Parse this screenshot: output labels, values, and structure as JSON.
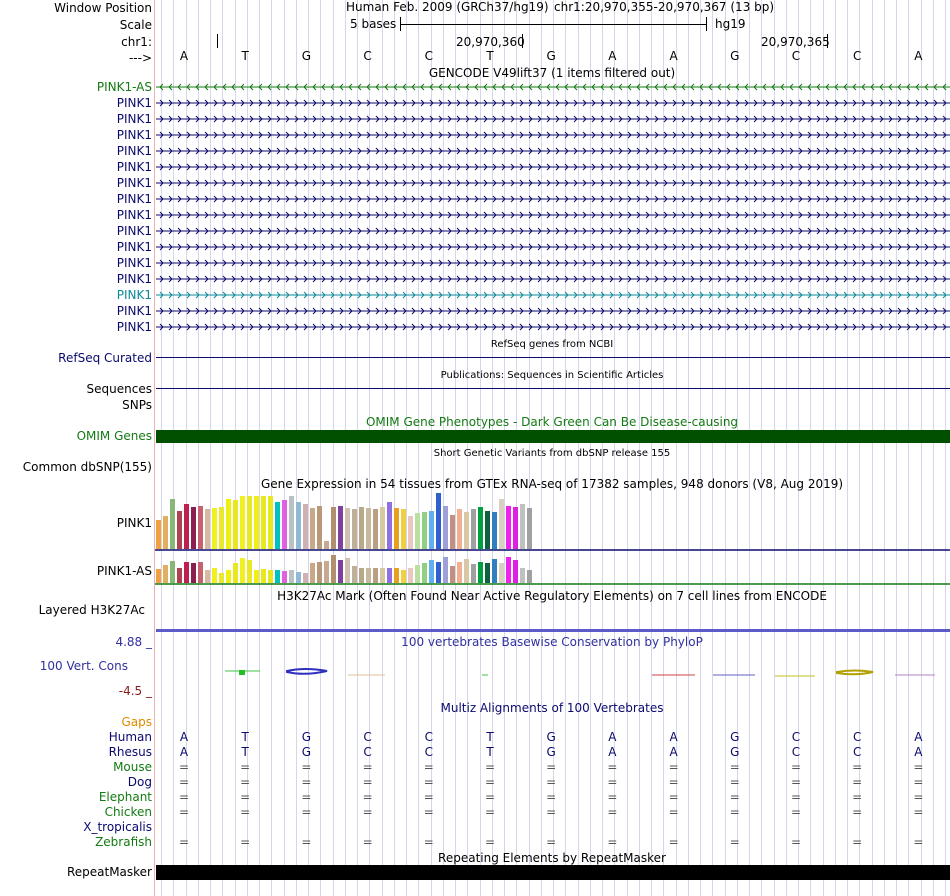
{
  "header": {
    "window_position_label": "Window Position",
    "assembly_text": "Human Feb. 2009 (GRCh37/hg19)",
    "position_text": "chr1:20,970,355-20,970,367 (13 bp)",
    "scale_label": "Scale",
    "scale_text": "5 bases",
    "scale_db": "hg19",
    "chrom_label": "chr1:",
    "coord_1": "20,970,360",
    "coord_2": "20,970,365",
    "strand_label": "--->"
  },
  "sequence": [
    "A",
    "T",
    "G",
    "C",
    "C",
    "T",
    "G",
    "A",
    "A",
    "G",
    "C",
    "C",
    "A"
  ],
  "gencode": {
    "title": "GENCODE V49lift37 (1 items filtered out)",
    "color": "#0a0a6e",
    "rows": [
      {
        "label": "PINK1-AS",
        "color": "#137a13",
        "strand": "-"
      },
      {
        "label": "PINK1",
        "color": "#0a0a6e",
        "strand": "+"
      },
      {
        "label": "PINK1",
        "color": "#0a0a6e",
        "strand": "+"
      },
      {
        "label": "PINK1",
        "color": "#0a0a6e",
        "strand": "+"
      },
      {
        "label": "PINK1",
        "color": "#0a0a6e",
        "strand": "+"
      },
      {
        "label": "PINK1",
        "color": "#0a0a6e",
        "strand": "+"
      },
      {
        "label": "PINK1",
        "color": "#0a0a6e",
        "strand": "+"
      },
      {
        "label": "PINK1",
        "color": "#0a0a6e",
        "strand": "+"
      },
      {
        "label": "PINK1",
        "color": "#0a0a6e",
        "strand": "+"
      },
      {
        "label": "PINK1",
        "color": "#0a0a6e",
        "strand": "+"
      },
      {
        "label": "PINK1",
        "color": "#0a0a6e",
        "strand": "+"
      },
      {
        "label": "PINK1",
        "color": "#0a0a6e",
        "strand": "+"
      },
      {
        "label": "PINK1",
        "color": "#0a0a6e",
        "strand": "+"
      },
      {
        "label": "PINK1",
        "color": "#0a8a9a",
        "strand": "+"
      },
      {
        "label": "PINK1",
        "color": "#0a0a6e",
        "strand": "+"
      },
      {
        "label": "PINK1",
        "color": "#0a0a6e",
        "strand": "+"
      }
    ]
  },
  "refseq": {
    "title": "RefSeq genes from NCBI",
    "label": "RefSeq Curated",
    "color": "#0a0a6e"
  },
  "publications": {
    "title": "Publications: Sequences in Scientific Articles",
    "label": "Sequences"
  },
  "snps": {
    "label": "SNPs"
  },
  "omim": {
    "title": "OMIM Gene Phenotypes - Dark Green Can Be Disease-causing",
    "label": "OMIM Genes",
    "color": "#005000"
  },
  "dbsnp": {
    "title": "Short Genetic Variants from dbSNP release 155",
    "label": "Common dbSNP(155)"
  },
  "gtex": {
    "title": "Gene Expression in 54 tissues from GTEx RNA-seq of 17382 samples, 948 donors (V8, Aug 2019)",
    "rows": [
      {
        "label": "PINK1",
        "values": [
          0.55,
          0.62,
          0.95,
          0.72,
          0.85,
          0.8,
          0.82,
          0.75,
          0.78,
          0.8,
          0.95,
          0.92,
          1.0,
          1.0,
          1.0,
          1.0,
          1.0,
          0.88,
          0.92,
          1.0,
          0.88,
          0.85,
          0.78,
          0.82,
          0.15,
          0.8,
          0.82,
          0.78,
          0.75,
          0.8,
          0.78,
          0.75,
          0.8,
          0.88,
          0.78,
          0.75,
          0.62,
          0.68,
          0.7,
          0.72,
          1.05,
          0.82,
          0.65,
          0.75,
          0.7,
          0.75,
          0.8,
          0.72,
          0.7,
          0.95,
          0.82,
          0.8,
          0.85,
          0.78
        ]
      },
      {
        "label": "PINK1-AS",
        "values": [
          0.5,
          0.65,
          0.8,
          0.55,
          0.75,
          0.72,
          0.75,
          0.45,
          0.52,
          0.35,
          0.45,
          0.72,
          0.88,
          0.82,
          0.45,
          0.5,
          0.45,
          0.45,
          0.42,
          0.45,
          0.4,
          0.35,
          0.72,
          0.75,
          0.78,
          1.0,
          0.82,
          0.88,
          0.62,
          0.55,
          0.55,
          0.55,
          0.55,
          0.55,
          0.52,
          0.45,
          0.52,
          0.65,
          0.72,
          0.82,
          0.75,
          0.92,
          0.6,
          0.75,
          0.85,
          0.68,
          0.75,
          0.72,
          0.85,
          0.72,
          0.92,
          0.82,
          0.52,
          0.45
        ]
      }
    ],
    "colors": [
      "#f0a040",
      "#e0b060",
      "#88b878",
      "#b04050",
      "#c02050",
      "#8a2050",
      "#c86070",
      "#d8b8a0",
      "#f0f020",
      "#e8e830",
      "#f0f010",
      "#e8e820",
      "#f0f020",
      "#e8e828",
      "#f0f010",
      "#e8e820",
      "#e8e820",
      "#00c0c0",
      "#e060e0",
      "#b8c0c8",
      "#90b8d8",
      "#d0b0b0",
      "#c8a888",
      "#b89878",
      "#c8a890",
      "#b09070",
      "#8040a0",
      "#d0c0b0",
      "#c0b098",
      "#b8a888",
      "#c8b8a0",
      "#b8a080",
      "#d8c8a0",
      "#9070e0",
      "#e8a020",
      "#f0d040",
      "#e8c8c0",
      "#b8e0a0",
      "#90d080",
      "#60b0f0",
      "#3060d0",
      "#a0a0d8",
      "#c09080",
      "#f0b090",
      "#d8c8a8",
      "#a0a0a0",
      "#00a040",
      "#106040",
      "#3080c0",
      "#d8d0c0",
      "#f020f0",
      "#e020e0",
      "#c0c0c0",
      "#a0a0a0"
    ]
  },
  "h3k27ac": {
    "title": "H3K27Ac Mark (Often Found Near Active Regulatory Elements) on 7 cell lines from ENCODE",
    "label": "Layered H3K27Ac"
  },
  "cons": {
    "title": "100 vertebrates Basewise Conservation by PhyloP",
    "label": "100 Vert. Cons",
    "max": "4.88 _",
    "min": "-4.5 _",
    "color": "#3030a0",
    "min_color": "#8a1a1a"
  },
  "multiz": {
    "title": "Multiz Alignments of 100 Vertebrates",
    "gaps_label": "Gaps",
    "species": [
      {
        "name": "Human",
        "color": "#0a0a6e",
        "bases": [
          "A",
          "T",
          "G",
          "C",
          "C",
          "T",
          "G",
          "A",
          "A",
          "G",
          "C",
          "C",
          "A"
        ]
      },
      {
        "name": "Rhesus",
        "color": "#0a0a6e",
        "bases": [
          "A",
          "T",
          "G",
          "C",
          "C",
          "T",
          "G",
          "A",
          "A",
          "G",
          "C",
          "C",
          "A"
        ]
      },
      {
        "name": "Mouse",
        "color": "#137a13",
        "bases": [
          "=",
          "=",
          "=",
          "=",
          "=",
          "=",
          "=",
          "=",
          "=",
          "=",
          "=",
          "=",
          "="
        ]
      },
      {
        "name": "Dog",
        "color": "#0a0a6e",
        "bases": [
          "=",
          "=",
          "=",
          "=",
          "=",
          "=",
          "=",
          "=",
          "=",
          "=",
          "=",
          "=",
          "="
        ]
      },
      {
        "name": "Elephant",
        "color": "#137a13",
        "bases": [
          "=",
          "=",
          "=",
          "=",
          "=",
          "=",
          "=",
          "=",
          "=",
          "=",
          "=",
          "=",
          "="
        ]
      },
      {
        "name": "Chicken",
        "color": "#137a13",
        "bases": [
          "=",
          "=",
          "=",
          "=",
          "=",
          "=",
          "=",
          "=",
          "=",
          "=",
          "=",
          "=",
          "="
        ]
      },
      {
        "name": "X_tropicalis",
        "color": "#0a0a6e",
        "bases": [
          "",
          "",
          "",
          "",
          "",
          "",
          "",
          "",
          "",
          "",
          "",
          "",
          ""
        ]
      },
      {
        "name": "Zebrafish",
        "color": "#137a13",
        "bases": [
          "=",
          "=",
          "=",
          "=",
          "=",
          "=",
          "=",
          "=",
          "=",
          "=",
          "=",
          "=",
          "="
        ]
      }
    ]
  },
  "repeatmasker": {
    "title": "Repeating Elements by RepeatMasker",
    "label": "RepeatMasker"
  }
}
